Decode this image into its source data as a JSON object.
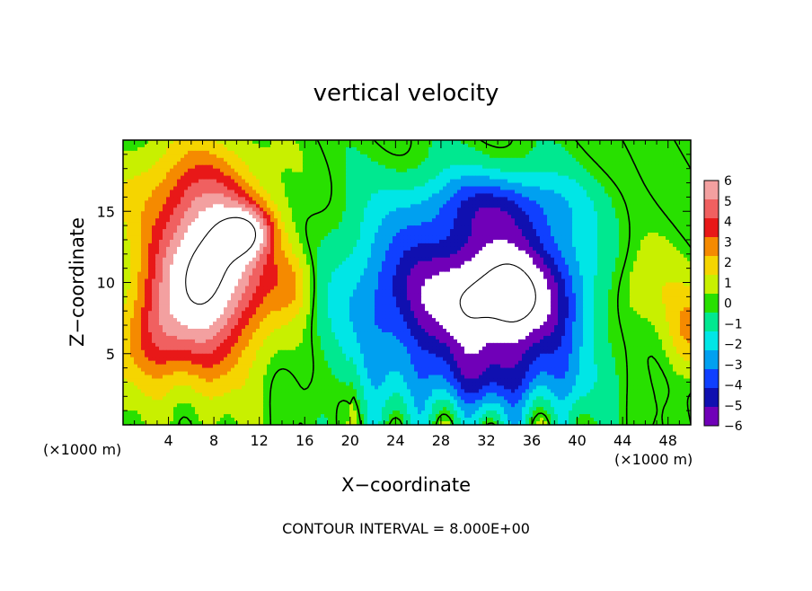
{
  "chart_data": {
    "type": "heatmap",
    "title": "vertical velocity",
    "xlabel": "X−coordinate",
    "ylabel": "Z−coordinate",
    "x_unit_label": "(×1000 m)",
    "z_unit_label": "(×1000 m)",
    "footer": "CONTOUR INTERVAL = 8.000E+00",
    "xlim": [
      0,
      50
    ],
    "ylim": [
      0,
      20
    ],
    "x_ticks": [
      4,
      8,
      12,
      16,
      20,
      24,
      28,
      32,
      36,
      40,
      44,
      48
    ],
    "y_ticks": [
      5,
      10,
      15
    ],
    "colorbar": {
      "levels": [
        6,
        5,
        4,
        3,
        2,
        1,
        0,
        -1,
        -2,
        -3,
        -4,
        -5,
        -6
      ],
      "labels": [
        "6",
        "5",
        "4",
        "3",
        "2",
        "1",
        "0",
        "−1",
        "−2",
        "−3",
        "−4",
        "−5",
        "−6"
      ],
      "colors": [
        "#f3a0a0",
        "#f06060",
        "#e81818",
        "#f58a00",
        "#f5d500",
        "#c8f000",
        "#28e000",
        "#00e890",
        "#00e6e6",
        "#00a0f0",
        "#1040ff",
        "#1010b0",
        "#7000b8"
      ]
    }
  }
}
